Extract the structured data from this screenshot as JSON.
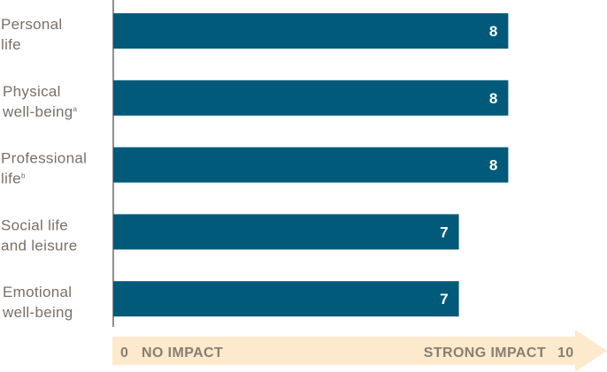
{
  "colors": {
    "bar": "#015a7a",
    "label": "#7a6f66",
    "axis": "#6b6b6b",
    "scale_arrow": "#fde9cc",
    "scale_text": "#8a7e72"
  },
  "chart_data": {
    "type": "bar",
    "orientation": "horizontal",
    "categories": [
      {
        "lines": [
          "Personal",
          "life"
        ],
        "sup": ""
      },
      {
        "lines": [
          "Physical",
          "well-being"
        ],
        "sup": "a"
      },
      {
        "lines": [
          "Professional",
          "life"
        ],
        "sup": "b"
      },
      {
        "lines": [
          "Social life",
          "and leisure"
        ],
        "sup": ""
      },
      {
        "lines": [
          "Emotional",
          "well-being"
        ],
        "sup": ""
      }
    ],
    "values": [
      8,
      8,
      8,
      7,
      7
    ],
    "xlim": [
      0,
      10
    ],
    "value_labels": true,
    "scale": {
      "min_label": "0",
      "min_text": "NO IMPACT",
      "max_text": "STRONG IMPACT",
      "max_label": "10"
    }
  }
}
